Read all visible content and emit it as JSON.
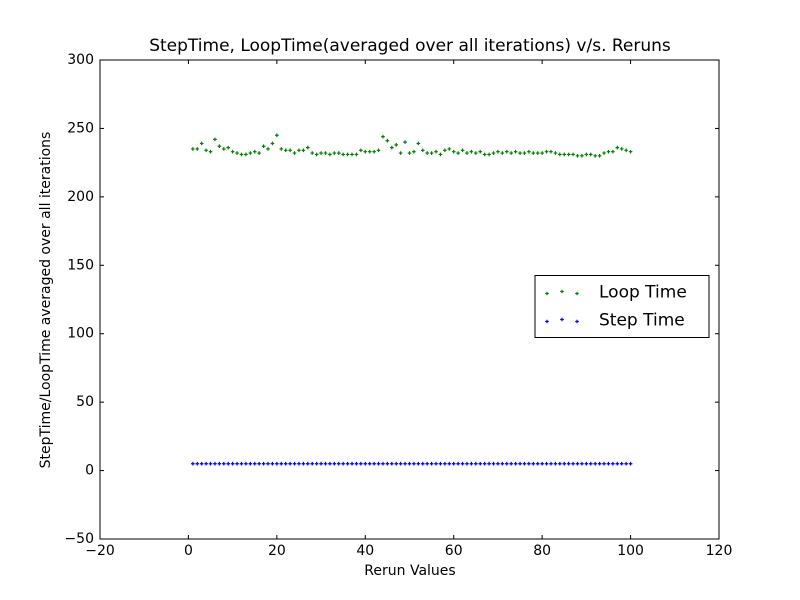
{
  "chart_data": {
    "type": "scatter",
    "title": "StepTime, LoopTime(averaged over all iterations) v/s. Reruns",
    "x_label": "Rerun Values",
    "y_label": "StepTime/LoopTime averaged over all iterations",
    "xlim": [
      -20,
      120
    ],
    "ylim": [
      -50,
      300
    ],
    "xticks": [
      {
        "value": -20,
        "label": "−20"
      },
      0,
      20,
      40,
      60,
      80,
      100,
      120
    ],
    "yticks": [
      {
        "value": -50,
        "label": "−50"
      },
      0,
      50,
      100,
      150,
      200,
      250,
      300
    ],
    "legend": "center right",
    "x": [
      1,
      2,
      3,
      4,
      5,
      6,
      7,
      8,
      9,
      10,
      11,
      12,
      13,
      14,
      15,
      16,
      17,
      18,
      19,
      20,
      21,
      22,
      23,
      24,
      25,
      26,
      27,
      28,
      29,
      30,
      31,
      32,
      33,
      34,
      35,
      36,
      37,
      38,
      39,
      40,
      41,
      42,
      43,
      44,
      45,
      46,
      47,
      48,
      49,
      50,
      51,
      52,
      53,
      54,
      55,
      56,
      57,
      58,
      59,
      60,
      61,
      62,
      63,
      64,
      65,
      66,
      67,
      68,
      69,
      70,
      71,
      72,
      73,
      74,
      75,
      76,
      77,
      78,
      79,
      80,
      81,
      82,
      83,
      84,
      85,
      86,
      87,
      88,
      89,
      90,
      91,
      92,
      93,
      94,
      95,
      96,
      97,
      98,
      99,
      100
    ],
    "series": [
      {
        "name": "Loop Time",
        "color": "#008000",
        "values": [
          235,
          235,
          239,
          234,
          233,
          242,
          237,
          235,
          236,
          233,
          232,
          231,
          231,
          232,
          233,
          232,
          237,
          235,
          239,
          245,
          235,
          234,
          234,
          232,
          234,
          234,
          236,
          232,
          231,
          232,
          232,
          231,
          232,
          232,
          231,
          231,
          231,
          231,
          234,
          233,
          233,
          233,
          234,
          244,
          241,
          236,
          238,
          232,
          240,
          232,
          233,
          239,
          234,
          232,
          232,
          233,
          231,
          234,
          235,
          233,
          232,
          234,
          232,
          233,
          232,
          233,
          231,
          231,
          232,
          233,
          232,
          233,
          232,
          233,
          232,
          232,
          233,
          232,
          232,
          232,
          233,
          233,
          232,
          231,
          231,
          231,
          231,
          230,
          230,
          231,
          231,
          230,
          230,
          232,
          233,
          233,
          236,
          235,
          234,
          233
        ]
      },
      {
        "name": "Step Time",
        "color": "#0000ff",
        "values": [
          5,
          5,
          5,
          5,
          5,
          5,
          5,
          5,
          5,
          5,
          5,
          5,
          5,
          5,
          5,
          5,
          5,
          5,
          5,
          5,
          5,
          5,
          5,
          5,
          5,
          5,
          5,
          5,
          5,
          5,
          5,
          5,
          5,
          5,
          5,
          5,
          5,
          5,
          5,
          5,
          5,
          5,
          5,
          5,
          5,
          5,
          5,
          5,
          5,
          5,
          5,
          5,
          5,
          5,
          5,
          5,
          5,
          5,
          5,
          5,
          5,
          5,
          5,
          5,
          5,
          5,
          5,
          5,
          5,
          5,
          5,
          5,
          5,
          5,
          5,
          5,
          5,
          5,
          5,
          5,
          5,
          5,
          5,
          5,
          5,
          5,
          5,
          5,
          5,
          5,
          5,
          5,
          5,
          5,
          5,
          5,
          5,
          5,
          5,
          5
        ]
      }
    ]
  }
}
